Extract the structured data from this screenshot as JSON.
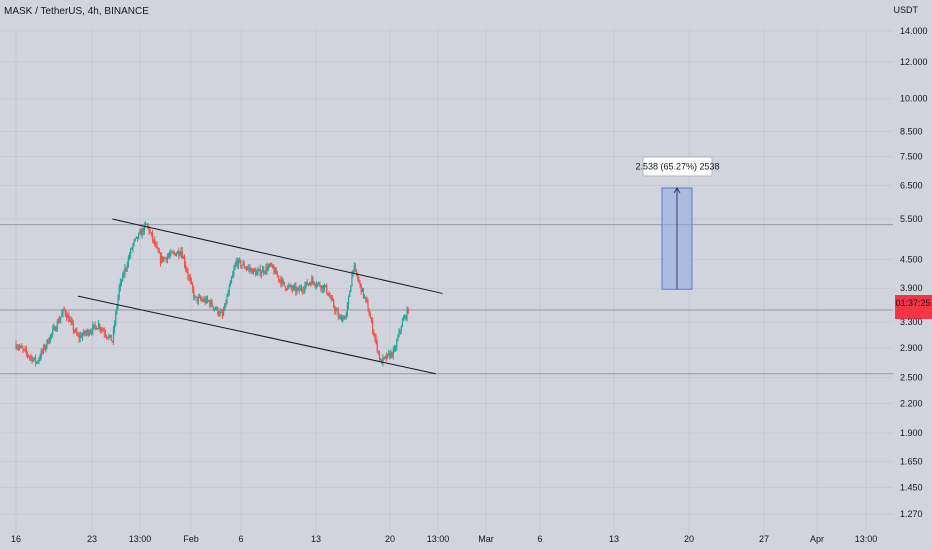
{
  "header": {
    "symbol": "MASK / TetherUS, 4h, BINANCE",
    "currency": "USDT"
  },
  "price_tag": {
    "time_label": "01:37:25",
    "color": "#f23645"
  },
  "measure": {
    "label": "2.538 (65.27%) 2538",
    "color": "#8fa8e0"
  },
  "colors": {
    "background": "#d1d4dc",
    "up": "#26a69a",
    "down": "#ef5350",
    "trendline": "#131722",
    "hline": "#9598a1"
  },
  "chart_data": {
    "type": "candlestick",
    "title": "MASK / TetherUS, 4h, BINANCE",
    "y_scale": "log",
    "ylim": [
      1.22,
      15.3
    ],
    "y_ticks": [
      {
        "value": 14.0,
        "label": "14.000"
      },
      {
        "value": 12.0,
        "label": "12.000"
      },
      {
        "value": 10.0,
        "label": "10.000"
      },
      {
        "value": 8.5,
        "label": "8.500"
      },
      {
        "value": 7.5,
        "label": "7.500"
      },
      {
        "value": 6.5,
        "label": "6.500"
      },
      {
        "value": 5.5,
        "label": "5.500"
      },
      {
        "value": 4.5,
        "label": "4.500"
      },
      {
        "value": 3.9,
        "label": "3.900"
      },
      {
        "value": 3.3,
        "label": "3.300"
      },
      {
        "value": 2.9,
        "label": "2.900"
      },
      {
        "value": 2.5,
        "label": "2.500"
      },
      {
        "value": 2.2,
        "label": "2.200"
      },
      {
        "value": 1.9,
        "label": "1.900"
      },
      {
        "value": 1.65,
        "label": "1.650"
      },
      {
        "value": 1.45,
        "label": "1.450"
      },
      {
        "value": 1.27,
        "label": "1.270"
      }
    ],
    "x_ticks": [
      "16",
      "23",
      "13:00",
      "Feb",
      "6",
      "13",
      "20",
      "13:00",
      "Mar",
      "6",
      "13",
      "20",
      "27",
      "Apr",
      "13:00"
    ],
    "last_price": 3.5,
    "horizontal_levels": [
      5.35,
      3.5,
      2.55
    ],
    "channel": {
      "upper": [
        {
          "date": "Jan 30",
          "price": 5.5
        },
        {
          "date": "Mar 19",
          "price": 3.8
        }
      ],
      "lower": [
        {
          "date": "Jan 25",
          "price": 3.75
        },
        {
          "date": "Mar 18",
          "price": 2.55
        }
      ]
    },
    "projection": {
      "from": 3.88,
      "to": 6.418,
      "change": 2.538,
      "percent": 65.27
    },
    "key_prices": [
      {
        "date": "Jan 16",
        "price": 2.95
      },
      {
        "date": "Jan 19",
        "price": 2.7
      },
      {
        "date": "Jan 23",
        "price": 3.5
      },
      {
        "date": "Jan 25",
        "price": 3.05
      },
      {
        "date": "Jan 28",
        "price": 3.25
      },
      {
        "date": "Jan 30",
        "price": 3.0
      },
      {
        "date": "Jan 31",
        "price": 3.9
      },
      {
        "date": "Feb 2",
        "price": 4.85
      },
      {
        "date": "Feb 4",
        "price": 5.35
      },
      {
        "date": "Feb 6",
        "price": 4.5
      },
      {
        "date": "Feb 9",
        "price": 4.7
      },
      {
        "date": "Feb 11",
        "price": 3.7
      },
      {
        "date": "Feb 13",
        "price": 3.65
      },
      {
        "date": "Feb 15",
        "price": 3.4
      },
      {
        "date": "Feb 17",
        "price": 4.45
      },
      {
        "date": "Feb 20",
        "price": 4.2
      },
      {
        "date": "Feb 22",
        "price": 4.35
      },
      {
        "date": "Feb 24",
        "price": 3.95
      },
      {
        "date": "Feb 26",
        "price": 3.85
      },
      {
        "date": "Feb 28",
        "price": 4.05
      },
      {
        "date": "Mar 2",
        "price": 3.9
      },
      {
        "date": "Mar 4",
        "price": 3.35
      },
      {
        "date": "Mar 5",
        "price": 3.4
      },
      {
        "date": "Mar 6",
        "price": 4.35
      },
      {
        "date": "Mar 8",
        "price": 3.6
      },
      {
        "date": "Mar 10",
        "price": 2.7
      },
      {
        "date": "Mar 12",
        "price": 2.85
      },
      {
        "date": "Mar 13",
        "price": 3.25
      },
      {
        "date": "Mar 14",
        "price": 3.5
      }
    ]
  }
}
